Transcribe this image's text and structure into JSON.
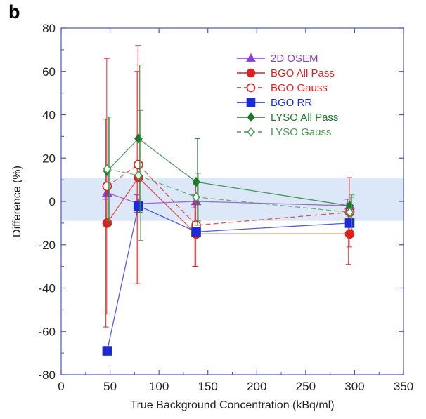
{
  "panel_label": "b",
  "chart_data": {
    "type": "line",
    "xlabel": "True Background Concentration (kBq/ml)",
    "ylabel": "Difference (%)",
    "xlim": [
      0,
      350
    ],
    "ylim": [
      -80,
      80
    ],
    "xticks": [
      0,
      50,
      100,
      150,
      200,
      250,
      300,
      350
    ],
    "yticks": [
      -80,
      -60,
      -40,
      -20,
      0,
      20,
      40,
      60,
      80
    ],
    "grid": false,
    "legend_position": "top-right",
    "band": {
      "ymin": -9,
      "ymax": 11,
      "color": "#dce8f7"
    },
    "axis_color": "#4a55c8",
    "series": [
      {
        "name": "2D OSEM",
        "color": "#8a3fd6",
        "marker": "triangle",
        "dashed": false,
        "filled": true,
        "x": [
          47,
          79,
          138,
          295
        ],
        "y": [
          4,
          -1,
          0,
          -2
        ],
        "err": [
          3,
          4,
          3,
          3
        ]
      },
      {
        "name": "BGO All Pass",
        "color": "#e02020",
        "marker": "circle",
        "dashed": false,
        "filled": true,
        "x": [
          47,
          79,
          138,
          295
        ],
        "y": [
          -10,
          11,
          -15,
          -15
        ],
        "err": [
          48,
          49,
          15,
          14
        ]
      },
      {
        "name": "BGO Gauss",
        "color": "#e02020",
        "marker": "circle",
        "dashed": true,
        "filled": false,
        "x": [
          47,
          79,
          138,
          295
        ],
        "y": [
          7,
          17,
          -11,
          -5
        ],
        "err": [
          59,
          55,
          19,
          16
        ]
      },
      {
        "name": "BGO RR",
        "color": "#1a2ad8",
        "marker": "square",
        "dashed": false,
        "filled": true,
        "x": [
          47,
          79,
          138,
          295
        ],
        "y": [
          -69,
          -2,
          -14,
          -10
        ],
        "err": [
          0,
          0,
          0,
          0
        ]
      },
      {
        "name": "LYSO All Pass",
        "color": "#1a7a2a",
        "marker": "diamond",
        "dashed": false,
        "filled": true,
        "x": [
          47,
          79,
          138,
          295
        ],
        "y": [
          14,
          29,
          9,
          -2
        ],
        "err": [
          25,
          34,
          20,
          4
        ]
      },
      {
        "name": "LYSO Gauss",
        "color": "#4a9a50",
        "marker": "diamond",
        "dashed": true,
        "filled": false,
        "x": [
          47,
          79,
          138,
          295
        ],
        "y": [
          15,
          12,
          2,
          -5
        ],
        "err": [
          24,
          30,
          11,
          8
        ]
      }
    ]
  }
}
